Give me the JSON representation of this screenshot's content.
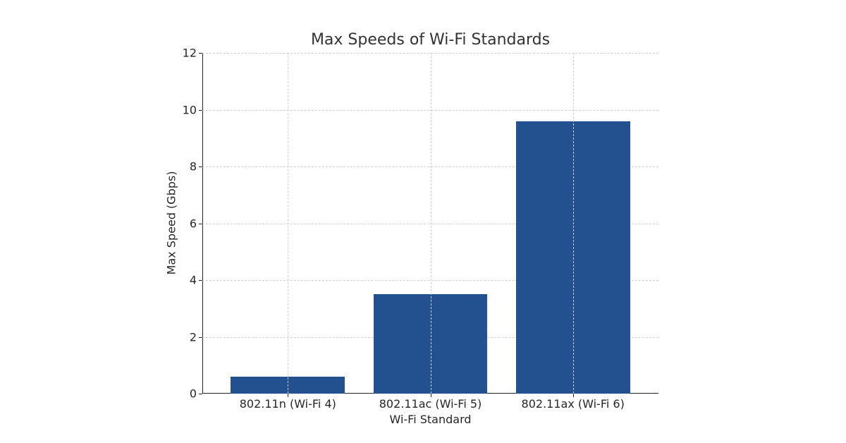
{
  "chart_data": {
    "type": "bar",
    "title": "Max Speeds of Wi-Fi Standards",
    "xlabel": "Wi-Fi Standard",
    "ylabel": "Max Speed (Gbps)",
    "categories": [
      "802.11n (Wi-Fi 4)",
      "802.11ac (Wi-Fi 5)",
      "802.11ax (Wi-Fi 6)"
    ],
    "values": [
      0.6,
      3.5,
      9.6
    ],
    "ylim": [
      0,
      12
    ],
    "yticks": [
      0,
      2,
      4,
      6,
      8,
      10,
      12
    ],
    "ytick_labels": [
      "0",
      "2",
      "4",
      "6",
      "8",
      "10",
      "12"
    ],
    "grid": true,
    "legend": null,
    "bar_color": "#23508f"
  }
}
